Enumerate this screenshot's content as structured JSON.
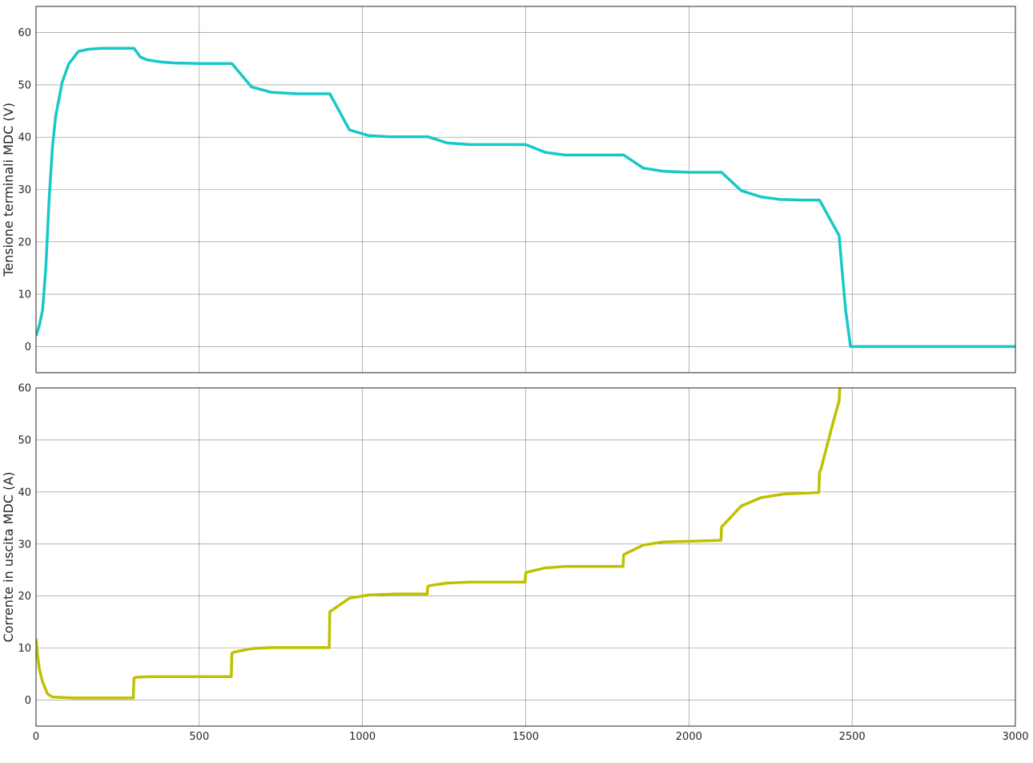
{
  "chart_data": [
    {
      "type": "line",
      "title": "",
      "xlabel": "",
      "ylabel": "Tensione terminali MDC (V)",
      "xlim": [
        0,
        3000
      ],
      "ylim": [
        -5,
        65
      ],
      "xticks": [],
      "yticks": [
        "0",
        "10",
        "20",
        "30",
        "40",
        "50",
        "60"
      ],
      "ytick_values": [
        0,
        10,
        20,
        30,
        40,
        50,
        60
      ],
      "grid": true,
      "series": [
        {
          "color": "#17c8c8",
          "x": [
            0,
            10,
            20,
            30,
            40,
            50,
            60,
            80,
            100,
            130,
            160,
            200,
            250,
            300,
            320,
            340,
            380,
            420,
            500,
            580,
            600,
            660,
            720,
            800,
            900,
            960,
            1020,
            1080,
            1150,
            1200,
            1260,
            1330,
            1420,
            1500,
            1560,
            1620,
            1700,
            1800,
            1860,
            1920,
            2000,
            2100,
            2160,
            2220,
            2280,
            2350,
            2400,
            2460,
            2470,
            2480,
            2495,
            2500,
            2600,
            2800,
            3000
          ],
          "y": [
            2,
            4,
            7,
            15,
            28,
            38,
            44,
            50.5,
            54,
            56.4,
            56.8,
            57,
            57,
            57,
            55.3,
            54.8,
            54.4,
            54.2,
            54.1,
            54.1,
            54.1,
            49.6,
            48.6,
            48.3,
            48.3,
            41.4,
            40.3,
            40.1,
            40.1,
            40.1,
            38.9,
            38.6,
            38.6,
            38.6,
            37.1,
            36.6,
            36.6,
            36.6,
            34.1,
            33.5,
            33.3,
            33.3,
            29.8,
            28.6,
            28.1,
            28.0,
            28.0,
            21.2,
            14,
            7,
            0,
            0,
            0,
            0,
            0
          ]
        }
      ]
    },
    {
      "type": "line",
      "title": "",
      "xlabel": "",
      "ylabel": "Corrente in uscita MDC (A)",
      "xlim": [
        0,
        3000
      ],
      "ylim": [
        -5,
        60
      ],
      "xticks": [
        "0",
        "500",
        "1000",
        "1500",
        "2000",
        "2500",
        "3000"
      ],
      "xtick_values": [
        0,
        500,
        1000,
        1500,
        2000,
        2500,
        3000
      ],
      "yticks": [
        "0",
        "10",
        "20",
        "30",
        "40",
        "50",
        "60"
      ],
      "ytick_values": [
        0,
        10,
        20,
        30,
        40,
        50,
        60
      ],
      "grid": true,
      "series": [
        {
          "color": "#c0c000",
          "x": [
            0,
            5,
            10,
            20,
            35,
            50,
            80,
            120,
            200,
            298,
            300,
            305,
            350,
            450,
            598,
            600,
            605,
            660,
            720,
            898,
            900,
            905,
            960,
            1020,
            1100,
            1198,
            1200,
            1205,
            1260,
            1330,
            1498,
            1500,
            1505,
            1560,
            1620,
            1798,
            1800,
            1805,
            1860,
            1920,
            2098,
            2100,
            2105,
            2160,
            2220,
            2290,
            2398,
            2400,
            2405,
            2440,
            2460,
            2462
          ],
          "y": [
            11.8,
            8.5,
            6,
            3.5,
            1.2,
            0.6,
            0.5,
            0.4,
            0.4,
            0.4,
            4.2,
            4.4,
            4.5,
            4.5,
            4.5,
            9,
            9.2,
            9.9,
            10.1,
            10.1,
            17,
            17.2,
            19.6,
            20.2,
            20.4,
            20.4,
            21.8,
            22,
            22.5,
            22.7,
            22.7,
            24.4,
            24.6,
            25.4,
            25.7,
            25.7,
            27.9,
            28.1,
            29.8,
            30.4,
            30.7,
            33.3,
            33.6,
            37.3,
            38.9,
            39.6,
            39.9,
            43.8,
            44.5,
            53,
            57.5,
            60
          ]
        }
      ]
    }
  ]
}
